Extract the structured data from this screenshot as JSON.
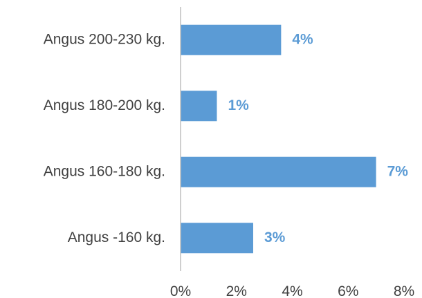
{
  "chart_data": {
    "type": "bar",
    "orientation": "horizontal",
    "categories": [
      "Angus 200-230 kg.",
      "Angus 180-200 kg.",
      "Angus 160-180 kg.",
      "Angus -160 kg."
    ],
    "values": [
      3.6,
      1.3,
      7.0,
      2.6
    ],
    "data_labels": [
      "4%",
      "1%",
      "7%",
      "3%"
    ],
    "xlim": [
      0,
      8
    ],
    "x_ticks": [
      0,
      2,
      4,
      6,
      8
    ],
    "x_tick_labels": [
      "0%",
      "2%",
      "4%",
      "6%",
      "8%"
    ],
    "grid": false,
    "bar_color": "#5b9bd5",
    "label_color": "#5b9bd5",
    "axis_color": "#bfbfbf",
    "text_color": "#404040"
  }
}
